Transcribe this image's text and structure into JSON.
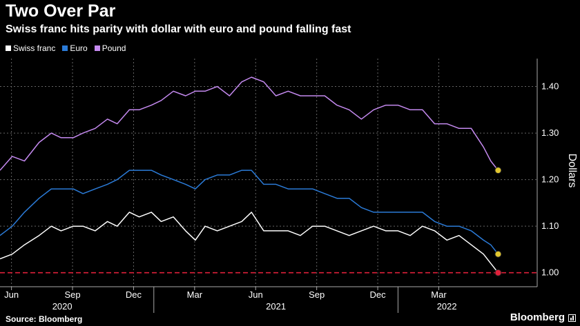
{
  "header": {
    "title": "Two Over Par",
    "subtitle": "Swiss franc hits parity with dollar with euro and pound falling fast"
  },
  "footer": {
    "source": "Source: Bloomberg",
    "brand": "Bloomberg"
  },
  "chart_data": {
    "type": "line",
    "ylabel": "Dollars",
    "ylim": [
      0.97,
      1.46
    ],
    "yticks": [
      1.0,
      1.1,
      1.2,
      1.3,
      1.4
    ],
    "ytick_labels": [
      "1.00",
      "1.10",
      "1.20",
      "1.30",
      "1.40"
    ],
    "xlim": [
      2020.37,
      2022.57
    ],
    "xticks": [
      {
        "x": 2020.417,
        "label": "Jun"
      },
      {
        "x": 2020.667,
        "label": "Sep"
      },
      {
        "x": 2020.917,
        "label": "Dec"
      },
      {
        "x": 2021.167,
        "label": "Mar"
      },
      {
        "x": 2021.417,
        "label": "Jun"
      },
      {
        "x": 2021.667,
        "label": "Sep"
      },
      {
        "x": 2021.917,
        "label": "Dec"
      },
      {
        "x": 2022.167,
        "label": "Mar"
      }
    ],
    "year_labels": [
      {
        "x": 2020.625,
        "label": "2020"
      },
      {
        "x": 2021.5,
        "label": "2021"
      },
      {
        "x": 2022.2,
        "label": "2022"
      }
    ],
    "year_dividers": [
      2021.0,
      2022.0
    ],
    "grid": true,
    "legend_position": "top-left",
    "reference_line": {
      "y": 1.0,
      "color": "#e0203a"
    },
    "series": [
      {
        "name": "Swiss franc",
        "color": "#ffffff",
        "marker_color": "#e0203a",
        "x": [
          2020.37,
          2020.42,
          2020.47,
          2020.53,
          2020.58,
          2020.62,
          2020.67,
          2020.71,
          2020.76,
          2020.81,
          2020.85,
          2020.9,
          2020.94,
          2020.99,
          2021.03,
          2021.08,
          2021.13,
          2021.17,
          2021.21,
          2021.26,
          2021.31,
          2021.36,
          2021.4,
          2021.45,
          2021.5,
          2021.55,
          2021.6,
          2021.65,
          2021.7,
          2021.75,
          2021.8,
          2021.85,
          2021.9,
          2021.95,
          2022.0,
          2022.05,
          2022.1,
          2022.15,
          2022.2,
          2022.25,
          2022.3,
          2022.35,
          2022.38,
          2022.41
        ],
        "values": [
          1.03,
          1.04,
          1.06,
          1.08,
          1.1,
          1.09,
          1.1,
          1.1,
          1.09,
          1.11,
          1.1,
          1.13,
          1.12,
          1.13,
          1.11,
          1.12,
          1.09,
          1.07,
          1.1,
          1.09,
          1.1,
          1.11,
          1.13,
          1.09,
          1.09,
          1.09,
          1.08,
          1.1,
          1.1,
          1.09,
          1.08,
          1.09,
          1.1,
          1.09,
          1.09,
          1.08,
          1.1,
          1.09,
          1.07,
          1.08,
          1.06,
          1.04,
          1.02,
          1.0
        ]
      },
      {
        "name": "Euro",
        "color": "#2b7bd8",
        "marker_color": "#e2c730",
        "x": [
          2020.37,
          2020.42,
          2020.47,
          2020.53,
          2020.58,
          2020.62,
          2020.67,
          2020.71,
          2020.76,
          2020.81,
          2020.85,
          2020.9,
          2020.94,
          2020.99,
          2021.03,
          2021.08,
          2021.13,
          2021.17,
          2021.21,
          2021.26,
          2021.31,
          2021.36,
          2021.4,
          2021.45,
          2021.5,
          2021.55,
          2021.6,
          2021.65,
          2021.7,
          2021.75,
          2021.8,
          2021.85,
          2021.9,
          2021.95,
          2022.0,
          2022.05,
          2022.1,
          2022.15,
          2022.2,
          2022.25,
          2022.3,
          2022.35,
          2022.38,
          2022.41
        ],
        "values": [
          1.08,
          1.1,
          1.13,
          1.16,
          1.18,
          1.18,
          1.18,
          1.17,
          1.18,
          1.19,
          1.2,
          1.22,
          1.22,
          1.22,
          1.21,
          1.2,
          1.19,
          1.18,
          1.2,
          1.21,
          1.21,
          1.22,
          1.22,
          1.19,
          1.19,
          1.18,
          1.18,
          1.18,
          1.17,
          1.16,
          1.16,
          1.14,
          1.13,
          1.13,
          1.13,
          1.13,
          1.13,
          1.11,
          1.1,
          1.1,
          1.09,
          1.07,
          1.06,
          1.04
        ]
      },
      {
        "name": "Pound",
        "color": "#c58af0",
        "marker_color": "#e2c730",
        "x": [
          2020.37,
          2020.42,
          2020.47,
          2020.53,
          2020.58,
          2020.62,
          2020.67,
          2020.71,
          2020.76,
          2020.81,
          2020.85,
          2020.9,
          2020.94,
          2020.99,
          2021.03,
          2021.08,
          2021.13,
          2021.17,
          2021.21,
          2021.26,
          2021.31,
          2021.36,
          2021.4,
          2021.45,
          2021.5,
          2021.55,
          2021.6,
          2021.65,
          2021.7,
          2021.75,
          2021.8,
          2021.85,
          2021.9,
          2021.95,
          2022.0,
          2022.05,
          2022.1,
          2022.15,
          2022.2,
          2022.25,
          2022.3,
          2022.35,
          2022.38,
          2022.41
        ],
        "values": [
          1.22,
          1.25,
          1.24,
          1.28,
          1.3,
          1.29,
          1.29,
          1.3,
          1.31,
          1.33,
          1.32,
          1.35,
          1.35,
          1.36,
          1.37,
          1.39,
          1.38,
          1.39,
          1.39,
          1.4,
          1.38,
          1.41,
          1.42,
          1.41,
          1.38,
          1.39,
          1.38,
          1.38,
          1.38,
          1.36,
          1.35,
          1.33,
          1.35,
          1.36,
          1.36,
          1.35,
          1.35,
          1.32,
          1.32,
          1.31,
          1.31,
          1.27,
          1.24,
          1.22
        ]
      }
    ]
  }
}
